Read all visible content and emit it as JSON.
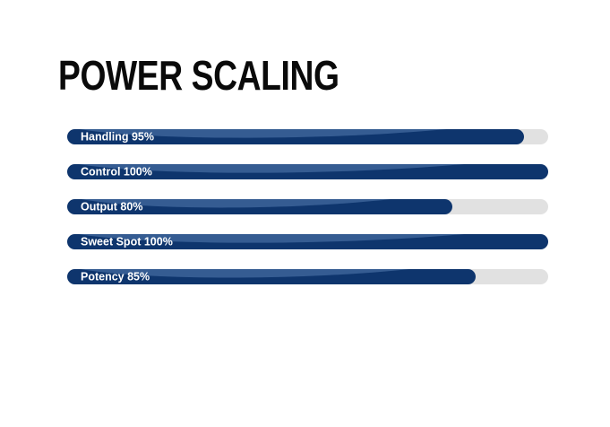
{
  "title": "POWER SCALING",
  "colors": {
    "background": "#ffffff",
    "title_text": "#0a0a0a",
    "bar_fill": "#0e356d",
    "bar_sheen": "#355c92",
    "bar_track": "#e1e1e1",
    "bar_label_text": "#ffffff"
  },
  "chart_data": {
    "type": "bar",
    "orientation": "horizontal",
    "title": "POWER SCALING",
    "categories": [
      "Handling",
      "Control",
      "Output",
      "Sweet Spot",
      "Potency"
    ],
    "values": [
      95,
      100,
      80,
      100,
      85
    ],
    "unit": "%",
    "value_range": [
      0,
      100
    ],
    "bar_labels": [
      "Handling 95%",
      "Control 100%",
      "Output 80%",
      "Sweet Spot 100%",
      "Potency 85%"
    ],
    "grid": false,
    "legend": false
  }
}
